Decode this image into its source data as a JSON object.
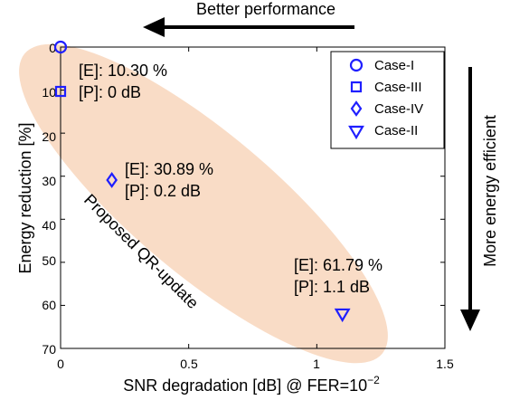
{
  "chart_data": {
    "type": "scatter",
    "xlabel": "SNR degradation [dB] @ FER=10",
    "xlabel_sup": "−2",
    "ylabel": "Energy reduction [%]",
    "xlim": [
      0,
      1.5
    ],
    "ylim": [
      0,
      70
    ],
    "y_reversed": true,
    "x_ticks": [
      "0",
      "0.5",
      "1",
      "1.5"
    ],
    "y_ticks": [
      "0",
      "10",
      "20",
      "30",
      "40",
      "50",
      "60",
      "70"
    ],
    "grid": false,
    "legend_position": "top-right",
    "series": [
      {
        "name": "Case-I",
        "marker": "circle",
        "x": 0,
        "y": 0
      },
      {
        "name": "Case-III",
        "marker": "square",
        "x": 0,
        "y": 10.3
      },
      {
        "name": "Case-IV",
        "marker": "diamond",
        "x": 0.2,
        "y": 30.89
      },
      {
        "name": "Case-II",
        "marker": "triangle-down",
        "x": 1.1,
        "y": 61.79
      }
    ],
    "annotations": [
      {
        "id": "a1",
        "lines": [
          "[E]: 10.30 %",
          "[P]: 0 dB"
        ]
      },
      {
        "id": "a2",
        "lines": [
          "[E]: 30.89 %",
          "[P]: 0.2 dB"
        ]
      },
      {
        "id": "a3",
        "lines": [
          "[E]: 61.79 %",
          "[P]: 1.1 dB"
        ]
      }
    ],
    "region_label": "Proposed QR-update",
    "top_arrow_label": "Better performance",
    "right_arrow_label": "More energy efficient",
    "colors": {
      "marker": "#1f1fff",
      "region": "#f9dcc6",
      "axis": "#000000"
    }
  }
}
